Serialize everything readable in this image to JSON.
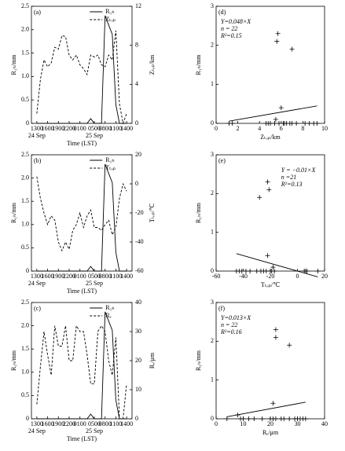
{
  "chart_data": [
    {
      "type": "line",
      "panel_label": "(a)",
      "xlabel": "Time (LST)",
      "ylabel": "R₁ₕ/mm",
      "y2label": "Zₜₒₚ/km",
      "x": [
        0,
        1,
        2,
        3,
        4,
        5,
        6,
        7,
        8,
        9,
        10,
        11,
        12,
        13,
        14,
        15,
        16,
        17,
        18,
        19,
        20,
        21,
        22,
        23,
        24,
        25
      ],
      "xlim": [
        -1.5,
        26.5
      ],
      "xticks": [
        {
          "value": 0,
          "label": "1300"
        },
        {
          "value": 3,
          "label": "1600"
        },
        {
          "value": 6,
          "label": "1900"
        },
        {
          "value": 9,
          "label": "2200"
        },
        {
          "value": 12,
          "label": "0100"
        },
        {
          "value": 16,
          "label": "0500"
        },
        {
          "value": 19,
          "label": "0800"
        },
        {
          "value": 22,
          "label": "1100"
        },
        {
          "value": 25,
          "label": "1400"
        }
      ],
      "date_labels": [
        {
          "value": 0,
          "label": "24 Sep"
        },
        {
          "value": 16,
          "label": "25 Sep"
        }
      ],
      "ylim": [
        0,
        2.5
      ],
      "yticks": [
        0,
        0.5,
        {
          "value": 1,
          "label": "1.0"
        },
        1.5,
        {
          "value": 2,
          "label": "2.0"
        },
        2.5
      ],
      "y2lim": [
        0,
        12
      ],
      "y2ticks": [
        0,
        4,
        8,
        12
      ],
      "series": [
        {
          "name": "R₁ₕ",
          "color": "#000000",
          "dash": false,
          "values": [
            0,
            0,
            0,
            0,
            0,
            0,
            0,
            0,
            0,
            0,
            0,
            0,
            0,
            0,
            0,
            0.1,
            0,
            0,
            0,
            2.3,
            2.1,
            1.9,
            0.4,
            0,
            0,
            0
          ]
        },
        {
          "name": "Zₜₒₚ",
          "color": "#000000",
          "dash": true,
          "axis": "y2",
          "values": [
            1,
            4.5,
            6.5,
            5.8,
            6.2,
            7.8,
            7.6,
            9,
            8.9,
            7,
            6.5,
            7,
            6,
            5.6,
            5,
            7,
            6.8,
            7,
            6,
            5.8,
            7,
            6.5,
            9.5,
            2,
            0,
            1
          ]
        }
      ]
    },
    {
      "type": "line",
      "panel_label": "(b)",
      "xlabel": "Time (LST)",
      "ylabel": "R₁ₕ/mm",
      "y2label": "Tₜₒₚ/℃",
      "x": [
        0,
        1,
        2,
        3,
        4,
        5,
        6,
        7,
        8,
        9,
        10,
        11,
        12,
        13,
        14,
        15,
        16,
        17,
        18,
        19,
        20,
        21,
        22,
        23,
        24,
        25
      ],
      "xlim": [
        -1.5,
        26.5
      ],
      "xticks": [
        {
          "value": 0,
          "label": "1300"
        },
        {
          "value": 3,
          "label": "1600"
        },
        {
          "value": 6,
          "label": "1900"
        },
        {
          "value": 9,
          "label": "2200"
        },
        {
          "value": 12,
          "label": "0100"
        },
        {
          "value": 16,
          "label": "0500"
        },
        {
          "value": 19,
          "label": "0800"
        },
        {
          "value": 22,
          "label": "1100"
        },
        {
          "value": 25,
          "label": "1400"
        }
      ],
      "date_labels": [
        {
          "value": 0,
          "label": "24 Sep"
        },
        {
          "value": 16,
          "label": "25 Sep"
        }
      ],
      "ylim": [
        0,
        2.5
      ],
      "yticks": [
        0,
        0.5,
        {
          "value": 1,
          "label": "1.0"
        },
        1.5,
        {
          "value": 2,
          "label": "2.0"
        },
        2.5
      ],
      "y2lim": [
        -60,
        20
      ],
      "y2ticks": [
        -60,
        -40,
        -20,
        0,
        20
      ],
      "series": [
        {
          "name": "R₁ₕ",
          "color": "#000000",
          "dash": false,
          "values": [
            0,
            0,
            0,
            0,
            0,
            0,
            0,
            0,
            0,
            0,
            0,
            0,
            0,
            0,
            0,
            0.1,
            0,
            0,
            0,
            2.3,
            2.1,
            1.9,
            0.4,
            0,
            0,
            0
          ]
        },
        {
          "name": "Tₜₒₚ",
          "color": "#000000",
          "dash": true,
          "axis": "y2",
          "values": [
            5,
            -10,
            -20,
            -28,
            -22,
            -25,
            -40,
            -46,
            -40,
            -45,
            -32,
            -28,
            -20,
            -30,
            -22,
            -18,
            -30,
            -30,
            -32,
            -28,
            -25,
            -35,
            -30,
            -10,
            0,
            -5
          ]
        }
      ]
    },
    {
      "type": "line",
      "panel_label": "(c)",
      "xlabel": "Time (LST)",
      "ylabel": "R₁ₕ/mm",
      "y2label": "Rₑ/μm",
      "x": [
        0,
        1,
        2,
        3,
        4,
        5,
        6,
        7,
        8,
        9,
        10,
        11,
        12,
        13,
        14,
        15,
        16,
        17,
        18,
        19,
        20,
        21,
        22,
        23,
        24,
        25
      ],
      "xlim": [
        -1.5,
        26.5
      ],
      "xticks": [
        {
          "value": 0,
          "label": "1300"
        },
        {
          "value": 3,
          "label": "1600"
        },
        {
          "value": 6,
          "label": "1900"
        },
        {
          "value": 9,
          "label": "2200"
        },
        {
          "value": 12,
          "label": "0100"
        },
        {
          "value": 16,
          "label": "0500"
        },
        {
          "value": 19,
          "label": "0800"
        },
        {
          "value": 22,
          "label": "1100"
        },
        {
          "value": 25,
          "label": "1400"
        }
      ],
      "date_labels": [
        {
          "value": 0,
          "label": "24 Sep"
        },
        {
          "value": 16,
          "label": "25 Sep"
        }
      ],
      "ylim": [
        0,
        2.5
      ],
      "yticks": [
        0,
        0.5,
        {
          "value": 1,
          "label": "1.0"
        },
        1.5,
        {
          "value": 2,
          "label": "2.0"
        },
        2.5
      ],
      "y2lim": [
        0,
        40
      ],
      "y2ticks": [
        0,
        10,
        20,
        30,
        40
      ],
      "series": [
        {
          "name": "R₁ₕ",
          "color": "#000000",
          "dash": false,
          "values": [
            0,
            0,
            0,
            0,
            0,
            0,
            0,
            0,
            0,
            0,
            0,
            0,
            0,
            0,
            0,
            0.1,
            0,
            0,
            0,
            2.3,
            2.1,
            1.9,
            0.4,
            0,
            0,
            0
          ]
        },
        {
          "name": "Rₑ",
          "color": "#000000",
          "dash": true,
          "axis": "y2",
          "values": [
            5,
            18,
            30,
            22,
            15,
            32,
            25,
            25,
            32,
            20,
            20,
            32,
            30,
            30,
            22,
            12,
            12,
            30,
            32,
            30,
            20,
            15,
            28,
            0,
            0,
            12
          ]
        }
      ]
    },
    {
      "type": "scatter",
      "panel_label": "(d)",
      "xlabel": "Zₜₒₚ/km",
      "ylabel": "R₁ₕ/mm",
      "color": "#000000",
      "x": [
        1.2,
        1.5,
        4.6,
        5.0,
        5.4,
        5.8,
        6.2,
        6.5,
        6.8,
        7.0,
        7.4,
        8.2,
        8.6,
        9.0,
        9.3,
        5.6,
        5.7,
        7.0,
        6.0,
        5.5,
        4.8,
        6.3
      ],
      "values": [
        0,
        0,
        0,
        0,
        0,
        0,
        0,
        0,
        0,
        0,
        0,
        0,
        0,
        0,
        0,
        2.1,
        2.3,
        1.9,
        0.4,
        0.1,
        0,
        0
      ],
      "xlim": [
        0,
        10
      ],
      "xticks": [
        0,
        2,
        4,
        6,
        8,
        10
      ],
      "ylim": [
        0,
        3
      ],
      "yticks": [
        0,
        1,
        2,
        3
      ],
      "annotations": [
        "Y=0.048×X",
        "n = 22",
        "R²=0.15"
      ],
      "fit_slope": 0.048
    },
    {
      "type": "scatter",
      "panel_label": "(e)",
      "xlabel": "Tₜₒₚ/℃",
      "ylabel": "R₁ₕ/mm",
      "color": "#000000",
      "x": [
        -45,
        -43,
        -41,
        -38,
        -30,
        -25,
        -23,
        -20,
        -17,
        5,
        6,
        7,
        15,
        -28,
        -22,
        -21,
        -18,
        -22,
        -35,
        -27,
        -19
      ],
      "values": [
        0,
        0,
        0,
        0,
        0,
        0,
        0,
        0,
        0,
        0,
        0,
        0,
        0,
        1.9,
        2.3,
        2.1,
        0.1,
        0.4,
        0,
        0,
        0
      ],
      "xlim": [
        -60,
        20
      ],
      "xticks": [
        -60,
        -40,
        -20,
        0,
        20
      ],
      "ylim": [
        0,
        3
      ],
      "yticks": [
        0,
        1,
        2,
        3
      ],
      "annotations": [
        "Y = −0.01×X",
        "n =21",
        "R²=0.13"
      ],
      "fit_slope": -0.01
    },
    {
      "type": "scatter",
      "panel_label": "(f)",
      "xlabel": "Rₑ/μm",
      "ylabel": "R₁ₕ/mm",
      "color": "#000000",
      "x": [
        4,
        9,
        10,
        14,
        20,
        21,
        22,
        25,
        27,
        30,
        31,
        32,
        22,
        22,
        27,
        21,
        8,
        12,
        17,
        24,
        29,
        33
      ],
      "values": [
        0,
        0,
        0,
        0,
        0,
        0,
        0,
        0,
        0,
        0,
        0,
        0,
        2.3,
        2.1,
        1.9,
        0.4,
        0.1,
        0,
        0,
        0,
        0,
        0
      ],
      "xlim": [
        0,
        40
      ],
      "xticks": [
        0,
        10,
        20,
        30,
        40
      ],
      "ylim": [
        0,
        3
      ],
      "yticks": [
        0,
        1,
        2,
        3
      ],
      "annotations": [
        "Y=0.013×X",
        "n = 22",
        "R²=0.16"
      ],
      "fit_slope": 0.013
    }
  ]
}
